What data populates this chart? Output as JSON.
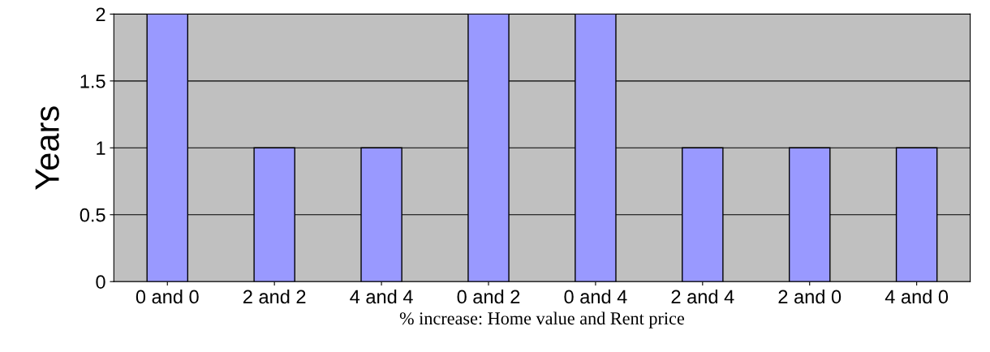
{
  "chart_data": {
    "type": "bar",
    "categories": [
      "0 and 0",
      "2 and 2",
      "4 and 4",
      "0 and 2",
      "0 and 4",
      "2 and 4",
      "2 and 0",
      "4 and 0"
    ],
    "values": [
      2,
      1,
      1,
      2,
      2,
      1,
      1,
      1
    ],
    "color": "#9999ff",
    "xlabel": "% increase: Home value and Rent price",
    "ylabel": "Years",
    "ylim": [
      0,
      2
    ],
    "yticks": [
      0,
      0.5,
      1,
      1.5,
      2
    ],
    "grid": "y"
  }
}
